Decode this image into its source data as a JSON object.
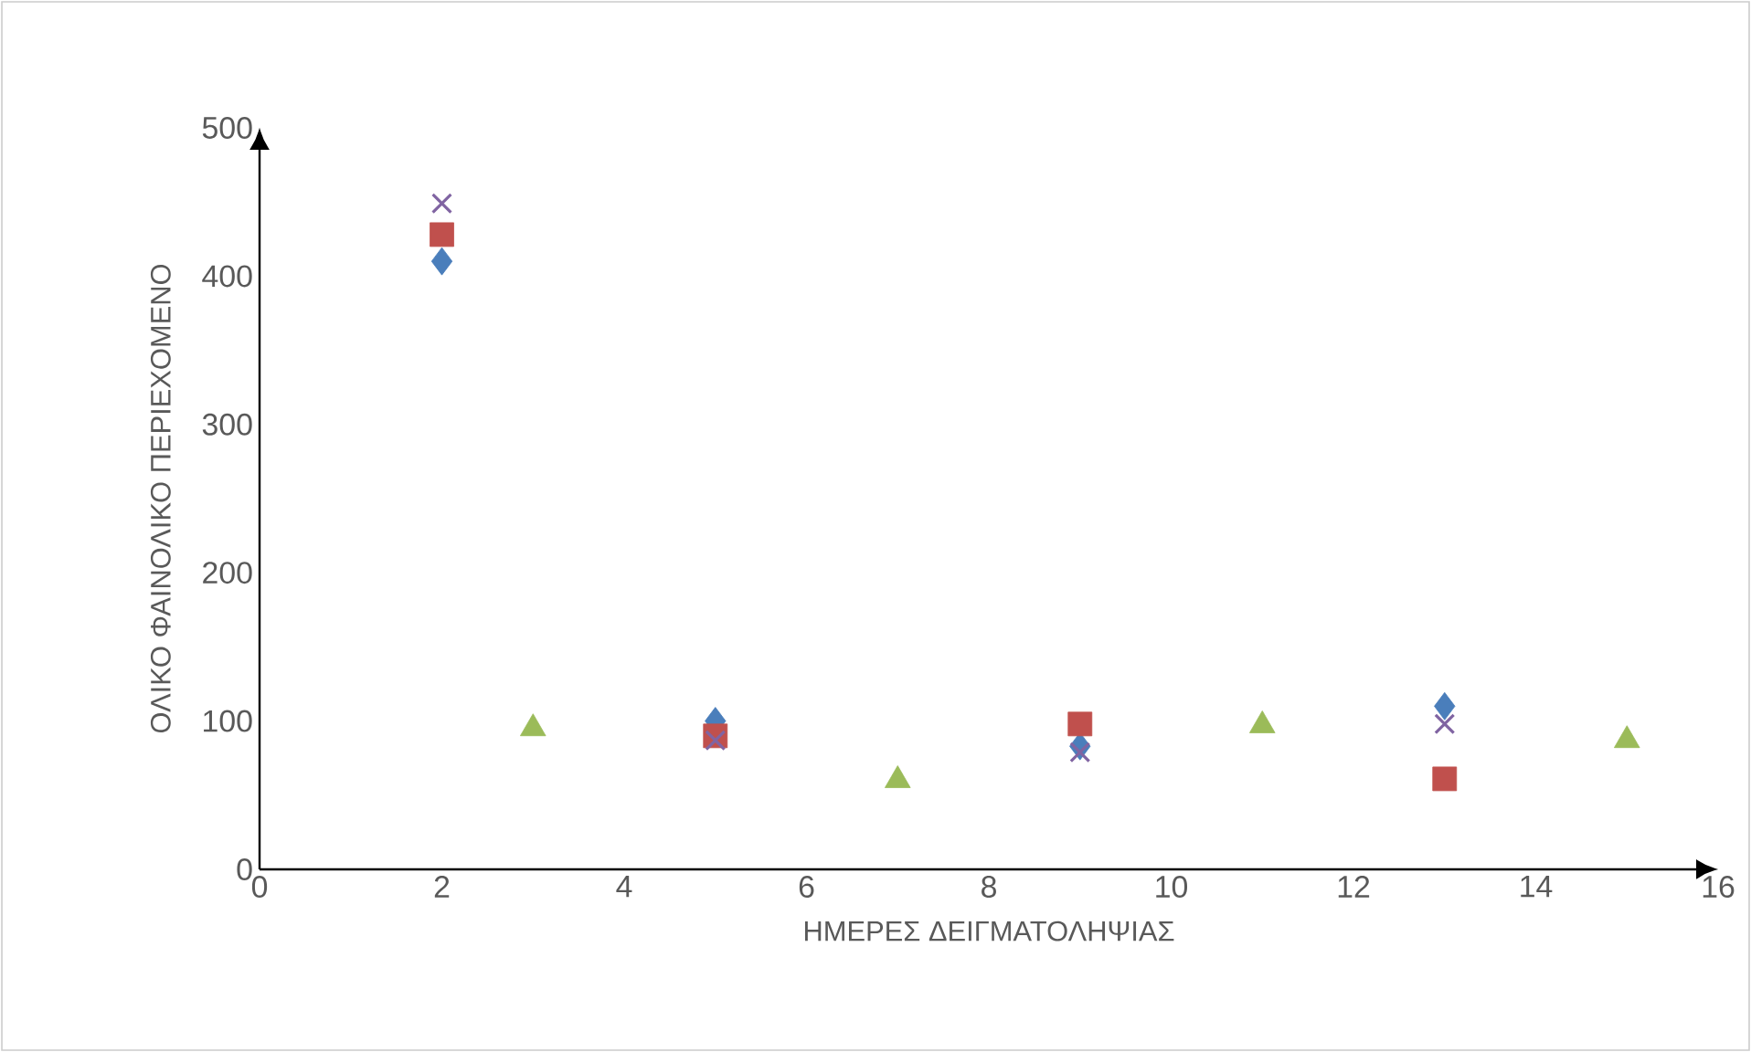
{
  "chart_data": {
    "type": "scatter",
    "xlabel": "ΗΜΕΡΕΣ ΔΕΙΓΜΑΤΟΛΗΨΙΑΣ",
    "ylabel": "ΟΛΙΚΟ ΦΑΙΝΟΛΙΚΟ ΠΕΡΙΕΧΟΜΕΝΟ",
    "xlim": [
      0,
      16
    ],
    "xticks": [
      0,
      2,
      4,
      6,
      8,
      10,
      12,
      14,
      16
    ],
    "ylim": [
      0,
      500
    ],
    "yticks": [
      0,
      100,
      200,
      300,
      400,
      500
    ],
    "series": [
      {
        "color": "#4a7ebb",
        "marker": "diamond",
        "x": [
          2,
          5,
          9,
          13
        ],
        "values": [
          410,
          100,
          83,
          110
        ]
      },
      {
        "color": "#c0504d",
        "marker": "square",
        "x": [
          2,
          5,
          9,
          13
        ],
        "values": [
          428,
          90,
          98,
          61
        ]
      },
      {
        "color": "#8064a2",
        "marker": "cross",
        "x": [
          2,
          5,
          9,
          13
        ],
        "values": [
          449,
          87,
          79,
          98
        ]
      },
      {
        "color": "#9bbb59",
        "marker": "triangle",
        "x": [
          3,
          7,
          11,
          15
        ],
        "values": [
          95,
          60,
          97,
          87
        ]
      }
    ]
  }
}
